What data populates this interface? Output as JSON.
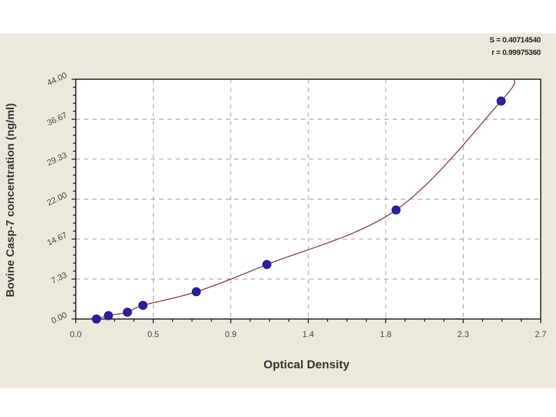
{
  "stats": {
    "s": "S = 0.40714540",
    "r": "r = 0.99975360"
  },
  "chart_data": {
    "type": "scatter",
    "title": "",
    "xlabel": "Optical Density",
    "ylabel": "Bovine Casp-7 concentration (ng/ml)",
    "xlim": [
      0,
      2.7
    ],
    "ylim": [
      0,
      44
    ],
    "x_ticks": [
      "0.0",
      "0.5",
      "0.9",
      "1.4",
      "1.8",
      "2.3",
      "2.7"
    ],
    "y_ticks": [
      "0.00",
      "7.33",
      "14.67",
      "22.00",
      "29.33",
      "36.67",
      "44.00"
    ],
    "grid": true,
    "series": [
      {
        "x": [
          0.12,
          0.19,
          0.3,
          0.39,
          0.7,
          1.11,
          1.86,
          2.47
        ],
        "y": [
          0,
          0.625,
          1.25,
          2.5,
          5,
          10,
          20,
          40
        ]
      }
    ],
    "fit_curve": true,
    "colors": {
      "points": "#2a1fa8",
      "curve": "#8b2a2a",
      "grid": "#9a9a9a"
    }
  }
}
